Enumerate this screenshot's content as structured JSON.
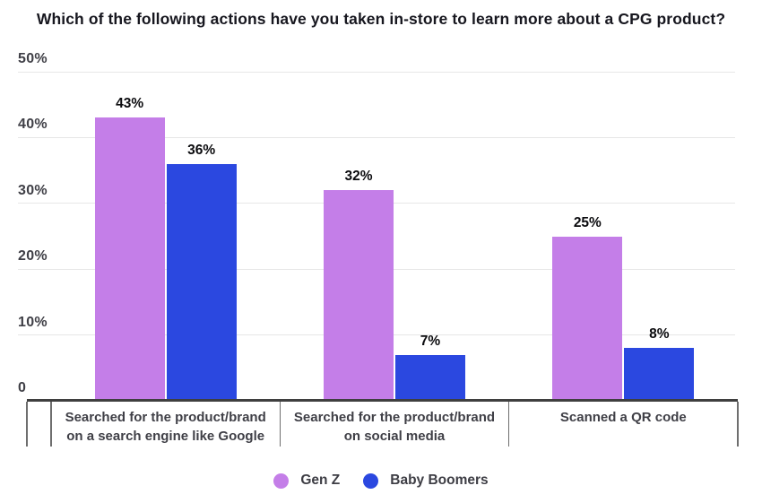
{
  "header": {
    "title": "Which of the following actions have you taken in-store to learn more about a CPG product?"
  },
  "chart_data": {
    "type": "bar",
    "title": "Which of the following actions have you taken in-store to learn more about a CPG product?",
    "categories": [
      "Searched for the product/brand on a search engine like Google",
      "Searched for the product/brand on social media",
      "Scanned a QR code"
    ],
    "category_lines": [
      [
        "Searched for the product/brand",
        "on a search engine like Google"
      ],
      [
        "Searched for the product/brand",
        "on social media"
      ],
      [
        "Scanned a QR code"
      ]
    ],
    "series": [
      {
        "name": "Gen Z",
        "color": "#c47ee8",
        "values": [
          43,
          32,
          25
        ]
      },
      {
        "name": "Baby Boomers",
        "color": "#2b48e0",
        "values": [
          36,
          7,
          8
        ]
      }
    ],
    "value_suffix": "%",
    "xlabel": "",
    "ylabel": "",
    "ylim": [
      0,
      50
    ],
    "yticks": [
      {
        "value": 50,
        "label": "50%"
      },
      {
        "value": 40,
        "label": "40%"
      },
      {
        "value": 30,
        "label": "30%"
      },
      {
        "value": 20,
        "label": "20%"
      },
      {
        "value": 10,
        "label": "10%"
      },
      {
        "value": 0,
        "label": "0"
      }
    ],
    "grid": true,
    "legend_position": "bottom"
  },
  "colors": {
    "gen_z": "#c47ee8",
    "baby_boomers": "#2b48e0",
    "title_text": "#17171f",
    "axis_text": "#3f3f46",
    "value_text": "#0b0b0e",
    "gridline": "#e7e7e7",
    "axis_line": "#3f3f3f",
    "separator": "#6e6e6e",
    "background": "#ffffff"
  }
}
